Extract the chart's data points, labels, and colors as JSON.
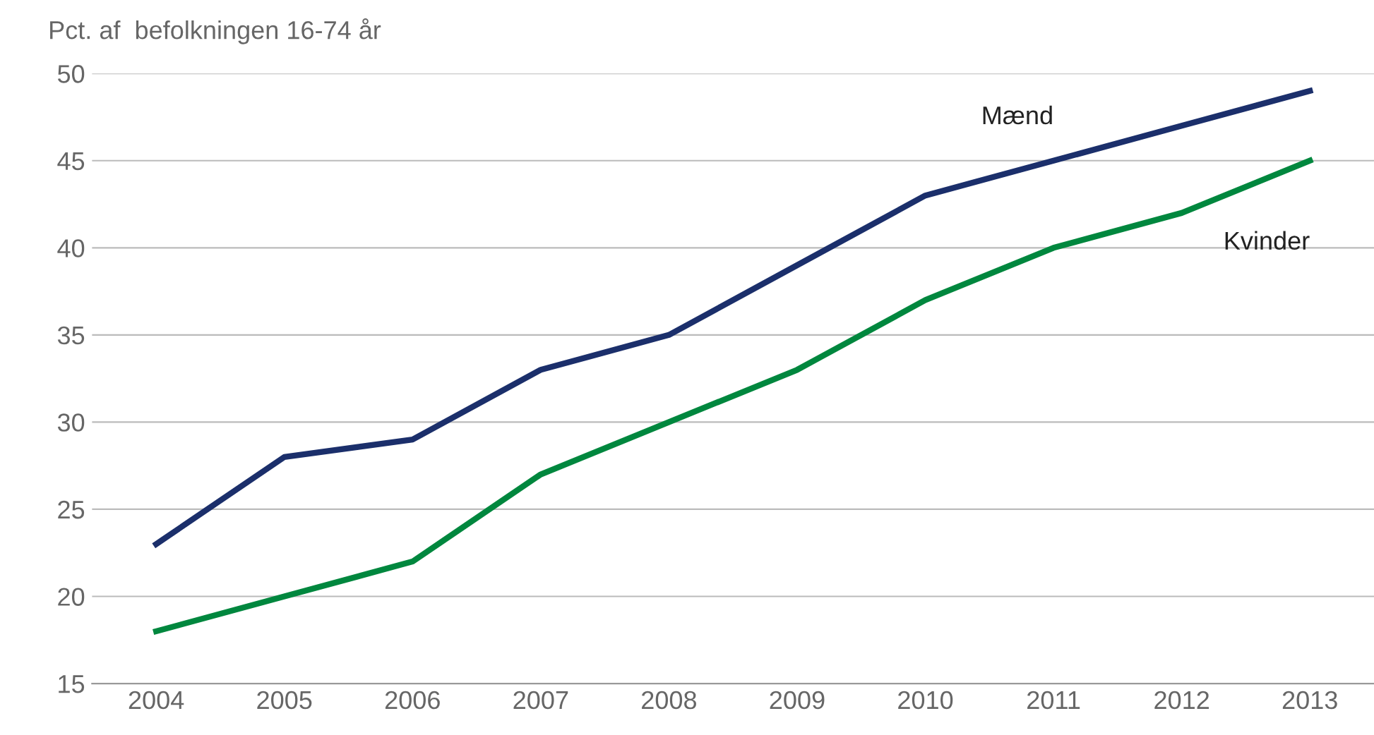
{
  "chart_data": {
    "type": "line",
    "ylabel": "Pct. af  befolkningen 16-74 år",
    "categories": [
      "2004",
      "2005",
      "2006",
      "2007",
      "2008",
      "2009",
      "2010",
      "2011",
      "2012",
      "2013"
    ],
    "series": [
      {
        "name": "Mænd",
        "color": "#1b2f6b",
        "values": [
          23,
          28,
          29,
          33,
          35,
          39,
          43,
          45,
          47,
          49
        ]
      },
      {
        "name": "Kvinder",
        "color": "#00873e",
        "values": [
          18,
          20,
          22,
          27,
          30,
          33,
          37,
          40,
          42,
          45
        ]
      }
    ],
    "ylim": [
      15,
      50
    ],
    "yticks": [
      15,
      20,
      25,
      30,
      35,
      40,
      45,
      50
    ],
    "grid": "y",
    "legend": false,
    "marker": "none",
    "line_style": "solid"
  }
}
